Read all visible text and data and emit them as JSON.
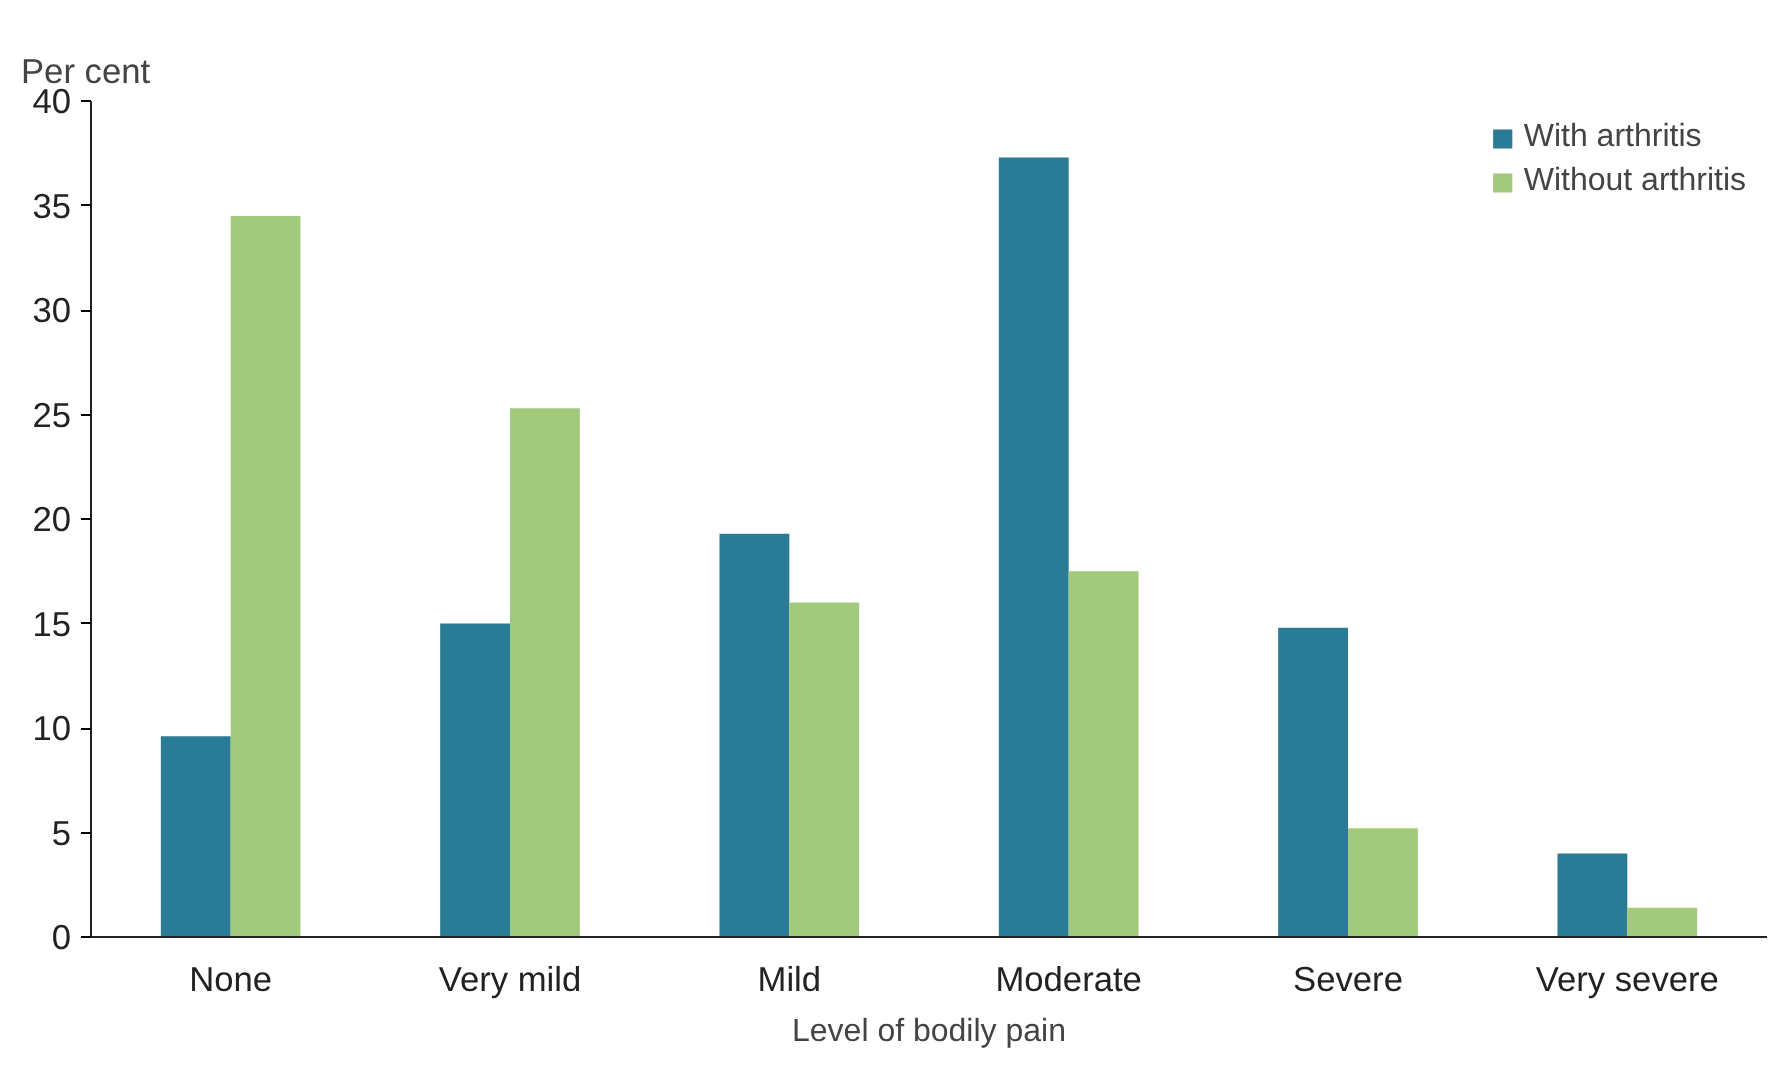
{
  "chart_data": {
    "type": "bar",
    "ylabel": "Per cent",
    "xlabel": "Level of bodily pain",
    "categories": [
      "None",
      "Very mild",
      "Mild",
      "Moderate",
      "Severe",
      "Very severe"
    ],
    "series": [
      {
        "name": "With arthritis",
        "color": "#2a7b96",
        "values": [
          9.6,
          15.0,
          19.3,
          37.3,
          14.8,
          4.0
        ]
      },
      {
        "name": "Without arthritis",
        "color": "#a2c97c",
        "values": [
          34.5,
          25.3,
          16.0,
          17.5,
          5.2,
          1.4
        ]
      }
    ],
    "ylim": [
      0,
      40
    ],
    "yticks": [
      0,
      5,
      10,
      15,
      20,
      25,
      30,
      35,
      40
    ],
    "grid": false,
    "legend": "top right"
  }
}
